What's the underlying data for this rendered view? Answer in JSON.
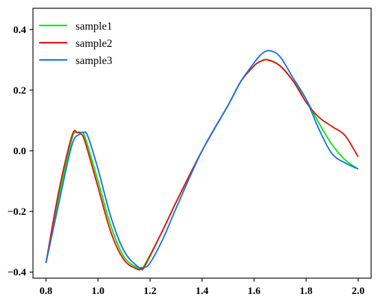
{
  "chart_data": {
    "type": "line",
    "title": "",
    "xlabel": "",
    "ylabel": "",
    "xlim": [
      0.75,
      2.05
    ],
    "ylim": [
      -0.42,
      0.47
    ],
    "xticks": [
      0.8,
      1.0,
      1.2,
      1.4,
      1.6,
      1.8,
      2.0
    ],
    "xtick_labels": [
      "0.8",
      "1.0",
      "1.2",
      "1.4",
      "1.6",
      "1.8",
      "2.0"
    ],
    "yticks": [
      -0.4,
      -0.2,
      0.0,
      0.2,
      0.4
    ],
    "ytick_labels": [
      "−0.4",
      "−0.2",
      "0.0",
      "0.2",
      "0.4"
    ],
    "grid": false,
    "legend_position": "top-left",
    "series": [
      {
        "name": "sample1",
        "color": "#00ee00",
        "x": [
          0.8,
          0.85,
          0.9,
          0.92,
          0.935,
          0.95,
          1.0,
          1.05,
          1.1,
          1.15,
          1.165,
          1.18,
          1.25,
          1.3,
          1.4,
          1.5,
          1.55,
          1.6,
          1.625,
          1.655,
          1.7,
          1.75,
          1.8,
          1.85,
          1.9,
          1.95,
          2.0
        ],
        "y": [
          -0.37,
          -0.15,
          0.04,
          0.06,
          0.06,
          0.045,
          -0.1,
          -0.25,
          -0.35,
          -0.385,
          -0.385,
          -0.375,
          -0.26,
          -0.17,
          0.0,
          0.15,
          0.23,
          0.28,
          0.295,
          0.3,
          0.28,
          0.23,
          0.17,
          0.09,
          0.02,
          -0.03,
          -0.06
        ]
      },
      {
        "name": "sample2",
        "color": "#e81010",
        "x": [
          0.8,
          0.85,
          0.9,
          0.92,
          0.935,
          0.95,
          1.0,
          1.05,
          1.1,
          1.15,
          1.165,
          1.18,
          1.25,
          1.3,
          1.4,
          1.5,
          1.55,
          1.6,
          1.625,
          1.65,
          1.7,
          1.75,
          1.8,
          1.85,
          1.9,
          1.95,
          2.0
        ],
        "y": [
          -0.37,
          -0.13,
          0.05,
          0.06,
          0.055,
          0.03,
          -0.12,
          -0.27,
          -0.36,
          -0.39,
          -0.39,
          -0.38,
          -0.26,
          -0.17,
          0.0,
          0.15,
          0.23,
          0.28,
          0.295,
          0.3,
          0.28,
          0.23,
          0.16,
          0.11,
          0.08,
          0.05,
          -0.02
        ]
      },
      {
        "name": "sample3",
        "color": "#1874e8",
        "x": [
          0.8,
          0.85,
          0.9,
          0.93,
          0.945,
          0.96,
          1.0,
          1.05,
          1.1,
          1.15,
          1.175,
          1.2,
          1.25,
          1.3,
          1.4,
          1.5,
          1.55,
          1.6,
          1.63,
          1.66,
          1.7,
          1.75,
          1.8,
          1.85,
          1.9,
          1.95,
          2.0
        ],
        "y": [
          -0.37,
          -0.17,
          0.02,
          0.055,
          0.06,
          0.05,
          -0.06,
          -0.22,
          -0.33,
          -0.38,
          -0.385,
          -0.37,
          -0.29,
          -0.19,
          0.0,
          0.15,
          0.23,
          0.29,
          0.32,
          0.33,
          0.31,
          0.24,
          0.17,
          0.07,
          -0.01,
          -0.04,
          -0.06
        ]
      }
    ]
  }
}
